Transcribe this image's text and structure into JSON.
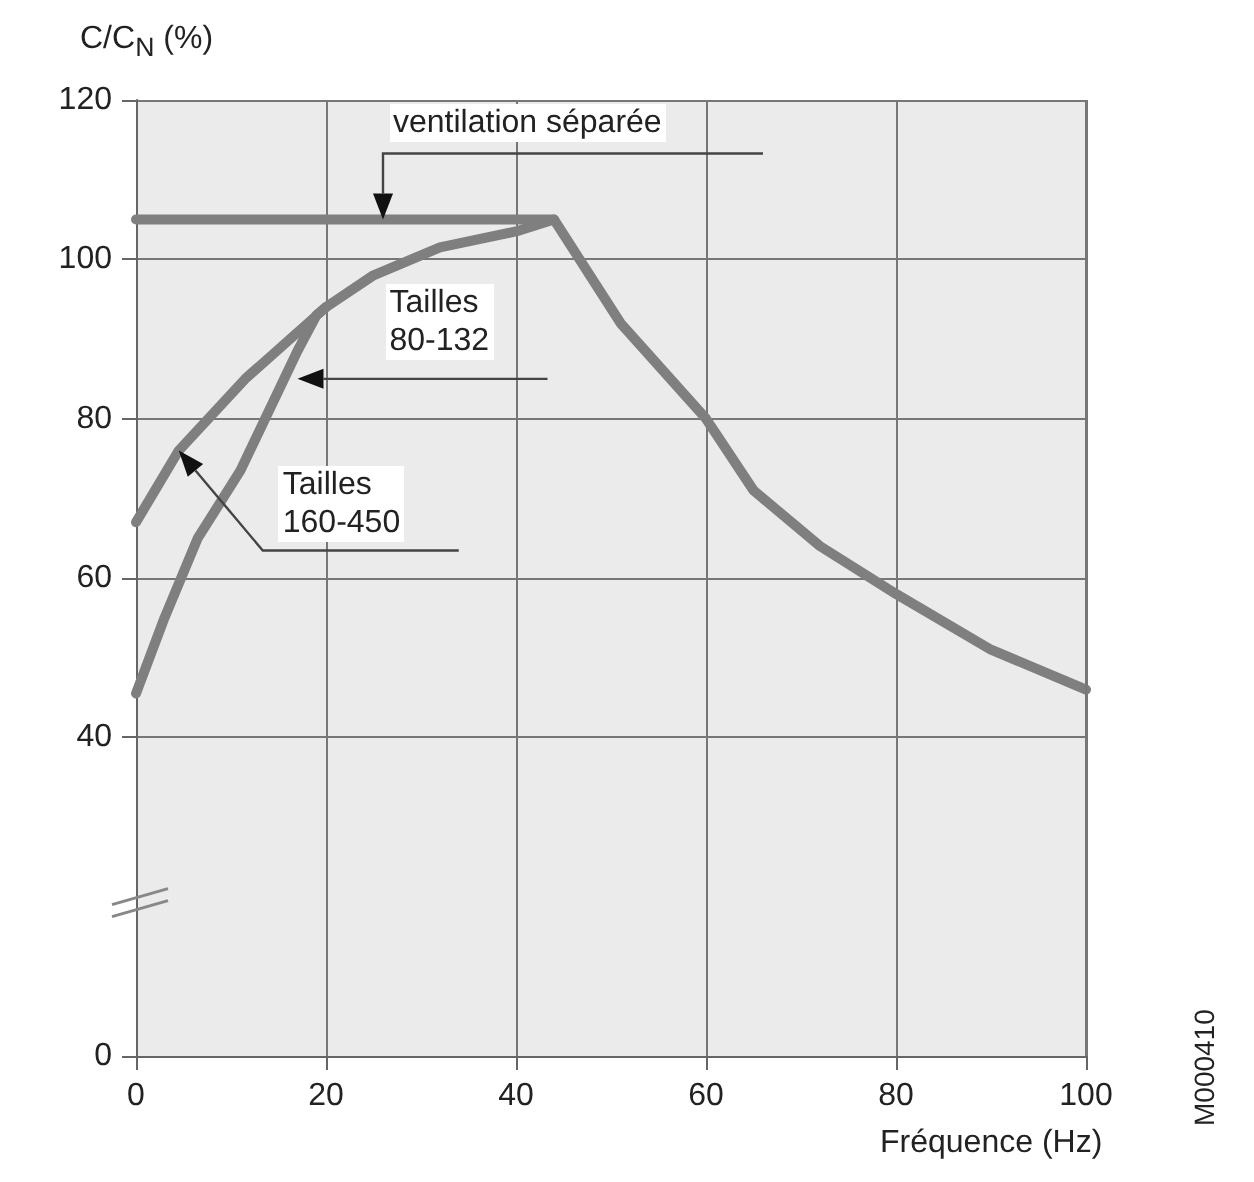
{
  "chart_data": {
    "type": "line",
    "ylabel": "C/C$_{N}$ (%)",
    "xlabel": "Fréquence (Hz)",
    "xlim": [
      0,
      100
    ],
    "xticks": [
      0,
      20,
      40,
      60,
      80,
      100
    ],
    "ylim": [
      0,
      120
    ],
    "yticks": [
      0,
      40,
      60,
      80,
      100,
      120
    ],
    "grid": true,
    "marker": "none",
    "line_style": "solid",
    "series": [
      {
        "color": "#7f7f7f",
        "x": [
          0,
          44,
          51,
          60,
          65,
          72,
          80,
          90,
          100
        ],
        "values": [
          105,
          105,
          92,
          80,
          71,
          64,
          58,
          51,
          46
        ]
      },
      {
        "color": "#7f7f7f",
        "x": [
          0,
          4.5,
          11.5,
          20,
          25,
          32,
          40,
          44
        ],
        "values": [
          67,
          76,
          85,
          94,
          98,
          101.5,
          103.5,
          105
        ]
      },
      {
        "color": "#7f7f7f",
        "x": [
          0,
          3,
          6.5,
          11,
          14,
          17,
          19,
          20
        ],
        "values": [
          45.5,
          55,
          65,
          73.5,
          81,
          88.5,
          93,
          94
        ]
      }
    ],
    "annotations": [
      {
        "text": "ventilation séparée",
        "x": 26,
        "y": 105
      },
      {
        "text": "Tailles\n80-132",
        "x": 17,
        "y": 85
      },
      "Tailles\n160-450",
      "M000410"
    ]
  }
}
